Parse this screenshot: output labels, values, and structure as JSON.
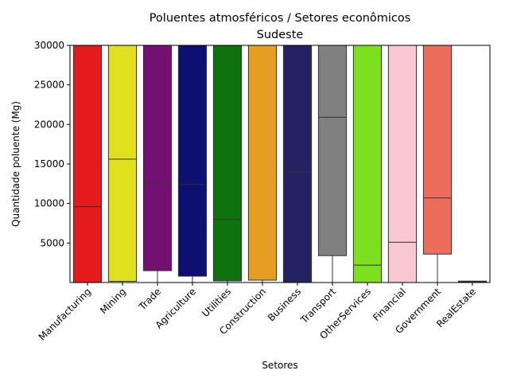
{
  "chart_data": {
    "type": "box",
    "title": "Poluentes atmosféricos / Setores econômicos",
    "subtitle": "Sudeste",
    "xlabel": "Setores",
    "ylabel": "Quantidade poluente (Mg)",
    "ylim": [
      0,
      30000
    ],
    "yticks": [
      5000,
      10000,
      15000,
      20000,
      25000,
      30000
    ],
    "grid": false,
    "legend": "none",
    "categories": [
      "Manufacturing",
      "Mining",
      "Trade",
      "Agriculture",
      "Utilities",
      "Construction",
      "Business",
      "Transport",
      "OtherServices",
      "Financial",
      "Government",
      "RealEstate"
    ],
    "colors": [
      "#e41a1c",
      "#e1e01e",
      "#721172",
      "#0e0e73",
      "#0e730e",
      "#e69e20",
      "#232364",
      "#808080",
      "#7de01e",
      "#f8c7d2",
      "#ee6c5b",
      "#ffffff"
    ],
    "boxes": [
      {
        "q1": 0,
        "median": 9600,
        "q3": 30000,
        "whisker_low": 0,
        "whisker_high": 30000
      },
      {
        "q1": 150,
        "median": 15600,
        "q3": 30000,
        "whisker_low": 0,
        "whisker_high": 30000
      },
      {
        "q1": 1500,
        "median": 12500,
        "q3": 30000,
        "whisker_low": 0,
        "whisker_high": 30000
      },
      {
        "q1": 800,
        "median": 12400,
        "q3": 30000,
        "whisker_low": 0,
        "whisker_high": 30000
      },
      {
        "q1": 200,
        "median": 8000,
        "q3": 30000,
        "whisker_low": 0,
        "whisker_high": 30000
      },
      {
        "q1": 300,
        "median": 30000,
        "q3": 30000,
        "whisker_low": 0,
        "whisker_high": 30000
      },
      {
        "q1": 0,
        "median": 14000,
        "q3": 30000,
        "whisker_low": 0,
        "whisker_high": 30000
      },
      {
        "q1": 3400,
        "median": 20900,
        "q3": 30000,
        "whisker_low": 0,
        "whisker_high": 30000
      },
      {
        "q1": 0,
        "median": 2200,
        "q3": 30000,
        "whisker_low": 0,
        "whisker_high": 30000
      },
      {
        "q1": 0,
        "median": 5100,
        "q3": 30000,
        "whisker_low": 0,
        "whisker_high": 30000
      },
      {
        "q1": 3600,
        "median": 10700,
        "q3": 30000,
        "whisker_low": 0,
        "whisker_high": 30000
      },
      {
        "q1": 30,
        "median": 100,
        "q3": 180,
        "whisker_low": 0,
        "whisker_high": 200
      }
    ]
  }
}
